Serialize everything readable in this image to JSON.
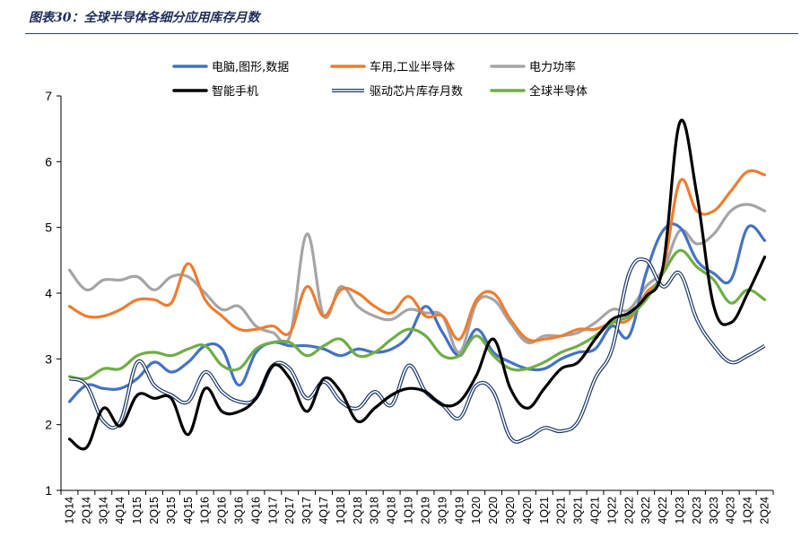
{
  "figure": {
    "title": "图表30：全球半导体各细分应用库存月数"
  },
  "chart_data": {
    "type": "line",
    "title": "",
    "xlabel": "",
    "ylabel": "",
    "ylim": [
      1,
      7
    ],
    "yticks": [
      1,
      2,
      3,
      4,
      5,
      6,
      7
    ],
    "grid": false,
    "legend_position": "top",
    "categories": [
      "1Q14",
      "2Q14",
      "3Q14",
      "4Q14",
      "1Q15",
      "2Q15",
      "3Q15",
      "4Q15",
      "1Q16",
      "2Q16",
      "3Q16",
      "4Q16",
      "1Q17",
      "2Q17",
      "3Q17",
      "4Q17",
      "1Q18",
      "2Q18",
      "3Q18",
      "4Q18",
      "1Q19",
      "2Q19",
      "3Q19",
      "4Q19",
      "1Q20",
      "2Q20",
      "3Q20",
      "4Q20",
      "1Q21",
      "2Q21",
      "3Q21",
      "4Q21",
      "1Q22",
      "2Q22",
      "3Q22",
      "4Q22",
      "1Q23",
      "2Q23",
      "3Q23",
      "4Q23",
      "1Q24",
      "2Q24"
    ],
    "series": [
      {
        "name": "电脑,图形,数据",
        "color": "#4472c4",
        "style": "solid",
        "values": [
          2.35,
          2.6,
          2.55,
          2.55,
          2.7,
          2.95,
          2.8,
          2.95,
          3.2,
          3.15,
          2.6,
          3.1,
          3.25,
          3.2,
          3.2,
          3.15,
          3.05,
          3.15,
          3.1,
          3.15,
          3.35,
          3.8,
          3.4,
          3.05,
          3.45,
          3.1,
          2.95,
          2.85,
          2.85,
          3.0,
          3.1,
          3.15,
          3.5,
          3.35,
          4.3,
          4.95,
          5.0,
          4.5,
          4.3,
          4.2,
          5.0,
          4.8
        ]
      },
      {
        "name": "车用,工业半导体",
        "color": "#ed7d31",
        "style": "solid",
        "values": [
          3.8,
          3.65,
          3.65,
          3.75,
          3.9,
          3.9,
          3.85,
          4.45,
          3.9,
          3.65,
          3.45,
          3.45,
          3.5,
          3.4,
          4.1,
          3.65,
          4.05,
          4.0,
          3.8,
          3.7,
          3.95,
          3.65,
          3.65,
          3.3,
          3.9,
          4.0,
          3.6,
          3.3,
          3.3,
          3.35,
          3.45,
          3.45,
          3.55,
          3.6,
          4.0,
          4.35,
          5.7,
          5.25,
          5.25,
          5.55,
          5.85,
          5.8
        ]
      },
      {
        "name": "电力功率",
        "color": "#a5a5a5",
        "style": "solid",
        "values": [
          4.35,
          4.05,
          4.2,
          4.2,
          4.25,
          4.05,
          4.25,
          4.25,
          4.0,
          3.75,
          3.8,
          3.5,
          3.4,
          3.35,
          4.9,
          3.65,
          4.1,
          3.8,
          3.65,
          3.6,
          3.75,
          3.7,
          3.65,
          3.1,
          3.85,
          3.9,
          3.55,
          3.25,
          3.35,
          3.35,
          3.4,
          3.55,
          3.75,
          3.75,
          4.1,
          4.35,
          4.95,
          4.75,
          4.9,
          5.25,
          5.35,
          5.25
        ]
      },
      {
        "name": "智能手机",
        "color": "#000000",
        "style": "solid",
        "values": [
          1.78,
          1.65,
          2.25,
          1.98,
          2.45,
          2.4,
          2.4,
          1.85,
          2.55,
          2.2,
          2.2,
          2.4,
          2.9,
          2.7,
          2.2,
          2.7,
          2.5,
          2.05,
          2.25,
          2.45,
          2.55,
          2.5,
          2.3,
          2.35,
          2.75,
          3.3,
          2.55,
          2.25,
          2.55,
          2.85,
          2.95,
          3.3,
          3.6,
          3.7,
          3.95,
          4.4,
          6.6,
          5.5,
          3.8,
          3.55,
          4.0,
          4.55
        ]
      },
      {
        "name": "驱动芯片库存月数",
        "color": "#1f3864",
        "style": "double",
        "values": [
          2.7,
          2.6,
          2.05,
          2.05,
          2.95,
          2.6,
          2.45,
          2.35,
          2.8,
          2.5,
          2.35,
          2.4,
          2.9,
          2.85,
          2.4,
          2.65,
          2.35,
          2.25,
          2.5,
          2.3,
          2.9,
          2.5,
          2.3,
          2.1,
          2.6,
          2.5,
          1.8,
          1.8,
          1.95,
          1.9,
          2.05,
          2.7,
          3.15,
          4.3,
          4.5,
          4.1,
          4.3,
          3.6,
          3.2,
          2.95,
          3.05,
          3.2
        ]
      },
      {
        "name": "全球半导体",
        "color": "#70ad47",
        "style": "solid",
        "values": [
          2.73,
          2.7,
          2.85,
          2.85,
          3.05,
          3.1,
          3.05,
          3.15,
          3.2,
          2.9,
          2.85,
          3.15,
          3.25,
          3.25,
          3.05,
          3.2,
          3.3,
          3.05,
          3.1,
          3.3,
          3.45,
          3.35,
          3.05,
          3.05,
          3.35,
          3.05,
          2.85,
          2.85,
          2.95,
          3.1,
          3.2,
          3.35,
          3.55,
          3.65,
          3.9,
          4.3,
          4.65,
          4.4,
          4.2,
          3.85,
          4.05,
          3.9
        ]
      }
    ]
  }
}
